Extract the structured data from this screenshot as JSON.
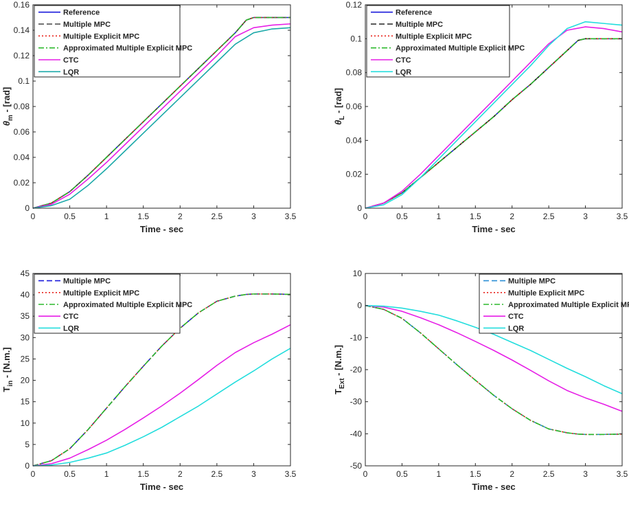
{
  "chart_data": [
    {
      "type": "line",
      "title": "",
      "xlabel": "Time - sec",
      "ylabel_parts": [
        "θ",
        "m",
        " - [rad]"
      ],
      "xlim": [
        0,
        3.5
      ],
      "ylim": [
        0,
        0.16
      ],
      "xticks": [
        0,
        0.5,
        1,
        1.5,
        2,
        2.5,
        3,
        3.5
      ],
      "yticks": [
        0,
        0.02,
        0.04,
        0.06,
        0.08,
        0.1,
        0.12,
        0.14,
        0.16
      ],
      "xtick_labels": [
        "0",
        "0.5",
        "1",
        "1.5",
        "2",
        "2.5",
        "3",
        "3.5"
      ],
      "ytick_labels": [
        "0",
        "0.02",
        "0.04",
        "0.06",
        "0.08",
        "0.1",
        "0.12",
        "0.14",
        "0.16"
      ],
      "legend_position": "top-left",
      "series": [
        {
          "name": "Reference",
          "color": "#1a1adb",
          "dash": "solid",
          "x": [
            0,
            0.25,
            0.5,
            0.75,
            1,
            1.25,
            1.5,
            1.75,
            2,
            2.25,
            2.5,
            2.75,
            2.9,
            3,
            3.25,
            3.5
          ],
          "y": [
            0,
            0.004,
            0.013,
            0.026,
            0.04,
            0.054,
            0.068,
            0.082,
            0.096,
            0.11,
            0.124,
            0.138,
            0.148,
            0.15,
            0.15,
            0.15
          ]
        },
        {
          "name": "Multiple MPC",
          "color": "#444444",
          "dash": "dashed",
          "x": [
            0,
            0.25,
            0.5,
            0.75,
            1,
            1.25,
            1.5,
            1.75,
            2,
            2.25,
            2.5,
            2.75,
            2.9,
            3,
            3.25,
            3.5
          ],
          "y": [
            0,
            0.004,
            0.013,
            0.026,
            0.04,
            0.054,
            0.068,
            0.082,
            0.096,
            0.11,
            0.124,
            0.138,
            0.148,
            0.15,
            0.15,
            0.15
          ]
        },
        {
          "name": "Multiple Explicit MPC",
          "color": "#e8221a",
          "dash": "dotted",
          "x": [
            0,
            0.25,
            0.5,
            0.75,
            1,
            1.25,
            1.5,
            1.75,
            2,
            2.25,
            2.5,
            2.75,
            2.9,
            3,
            3.25,
            3.5
          ],
          "y": [
            0,
            0.004,
            0.013,
            0.026,
            0.04,
            0.054,
            0.068,
            0.082,
            0.096,
            0.11,
            0.124,
            0.138,
            0.148,
            0.15,
            0.15,
            0.15
          ]
        },
        {
          "name": "Approximated Multiple Explicit MPC",
          "color": "#2bb82b",
          "dash": "dashdot",
          "x": [
            0,
            0.25,
            0.5,
            0.75,
            1,
            1.25,
            1.5,
            1.75,
            2,
            2.25,
            2.5,
            2.75,
            2.9,
            3,
            3.25,
            3.5
          ],
          "y": [
            0,
            0.004,
            0.013,
            0.026,
            0.04,
            0.054,
            0.068,
            0.082,
            0.096,
            0.11,
            0.124,
            0.138,
            0.148,
            0.15,
            0.15,
            0.15
          ]
        },
        {
          "name": "CTC",
          "color": "#e61ee6",
          "dash": "solid",
          "x": [
            0,
            0.25,
            0.5,
            0.75,
            1,
            1.25,
            1.5,
            1.75,
            2,
            2.25,
            2.5,
            2.75,
            3,
            3.25,
            3.5
          ],
          "y": [
            0,
            0.003,
            0.011,
            0.023,
            0.036,
            0.05,
            0.064,
            0.078,
            0.092,
            0.106,
            0.12,
            0.135,
            0.142,
            0.144,
            0.145
          ]
        },
        {
          "name": "LQR",
          "color": "#1aa8a8",
          "dash": "solid",
          "x": [
            0,
            0.25,
            0.5,
            0.75,
            1,
            1.25,
            1.5,
            1.75,
            2,
            2.25,
            2.5,
            2.75,
            3,
            3.25,
            3.5
          ],
          "y": [
            0,
            0.002,
            0.007,
            0.018,
            0.031,
            0.045,
            0.059,
            0.073,
            0.087,
            0.101,
            0.115,
            0.129,
            0.138,
            0.141,
            0.142
          ]
        }
      ]
    },
    {
      "type": "line",
      "title": "",
      "xlabel": "Time - sec",
      "ylabel_parts": [
        "θ",
        "L",
        " - [rad]"
      ],
      "xlim": [
        0,
        3.5
      ],
      "ylim": [
        0,
        0.12
      ],
      "xticks": [
        0,
        0.5,
        1,
        1.5,
        2,
        2.5,
        3,
        3.5
      ],
      "yticks": [
        0,
        0.02,
        0.04,
        0.06,
        0.08,
        0.1,
        0.12
      ],
      "xtick_labels": [
        "0",
        "0.5",
        "1",
        "1.5",
        "2",
        "2.5",
        "3",
        "3.5"
      ],
      "ytick_labels": [
        "0",
        "0.02",
        "0.04",
        "0.06",
        "0.08",
        "0.1",
        "0.12"
      ],
      "legend_position": "top-left",
      "series": [
        {
          "name": "Reference",
          "color": "#1a1adb",
          "dash": "solid",
          "x": [
            0,
            0.25,
            0.5,
            0.75,
            1,
            1.25,
            1.5,
            1.75,
            2,
            2.25,
            2.5,
            2.75,
            2.9,
            3,
            3.25,
            3.5
          ],
          "y": [
            0,
            0.003,
            0.009,
            0.018,
            0.027,
            0.036,
            0.045,
            0.054,
            0.064,
            0.073,
            0.083,
            0.093,
            0.099,
            0.1,
            0.1,
            0.1
          ]
        },
        {
          "name": "Multiple MPC",
          "color": "#222222",
          "dash": "dashed",
          "x": [
            0,
            0.25,
            0.5,
            0.75,
            1,
            1.25,
            1.5,
            1.75,
            2,
            2.25,
            2.5,
            2.75,
            2.9,
            3,
            3.25,
            3.5
          ],
          "y": [
            0,
            0.003,
            0.009,
            0.018,
            0.027,
            0.036,
            0.045,
            0.054,
            0.064,
            0.073,
            0.083,
            0.093,
            0.099,
            0.1,
            0.1,
            0.1
          ]
        },
        {
          "name": "Multiple Explicit MPC",
          "color": "#e8221a",
          "dash": "dotted",
          "x": [
            0,
            0.25,
            0.5,
            0.75,
            1,
            1.25,
            1.5,
            1.75,
            2,
            2.25,
            2.5,
            2.75,
            2.9,
            3,
            3.25,
            3.5
          ],
          "y": [
            0,
            0.003,
            0.009,
            0.018,
            0.027,
            0.036,
            0.045,
            0.054,
            0.064,
            0.073,
            0.083,
            0.093,
            0.099,
            0.1,
            0.1,
            0.1
          ]
        },
        {
          "name": "Approximated Multiple Explicit MPC",
          "color": "#2bb82b",
          "dash": "dashdot",
          "x": [
            0,
            0.25,
            0.5,
            0.75,
            1,
            1.25,
            1.5,
            1.75,
            2,
            2.25,
            2.5,
            2.75,
            2.9,
            3,
            3.25,
            3.5
          ],
          "y": [
            0,
            0.003,
            0.009,
            0.018,
            0.027,
            0.036,
            0.045,
            0.054,
            0.064,
            0.073,
            0.083,
            0.093,
            0.099,
            0.1,
            0.1,
            0.1
          ]
        },
        {
          "name": "CTC",
          "color": "#e61ee6",
          "dash": "solid",
          "x": [
            0,
            0.25,
            0.5,
            0.75,
            1,
            1.25,
            1.5,
            1.75,
            2,
            2.25,
            2.5,
            2.75,
            3,
            3.25,
            3.5
          ],
          "y": [
            0,
            0.003,
            0.01,
            0.02,
            0.031,
            0.042,
            0.053,
            0.064,
            0.075,
            0.086,
            0.097,
            0.105,
            0.107,
            0.106,
            0.104
          ]
        },
        {
          "name": "LQR",
          "color": "#22dddd",
          "dash": "solid",
          "x": [
            0,
            0.25,
            0.5,
            0.75,
            1,
            1.25,
            1.5,
            1.75,
            2,
            2.25,
            2.5,
            2.75,
            3,
            3.25,
            3.5
          ],
          "y": [
            0,
            0.002,
            0.008,
            0.018,
            0.029,
            0.04,
            0.051,
            0.062,
            0.073,
            0.084,
            0.096,
            0.106,
            0.11,
            0.109,
            0.108
          ]
        }
      ]
    },
    {
      "type": "line",
      "title": "",
      "xlabel": "Time - sec",
      "ylabel_parts": [
        "T",
        "in",
        " - [N.m.]"
      ],
      "xlim": [
        0,
        3.5
      ],
      "ylim": [
        0,
        45
      ],
      "xticks": [
        0,
        0.5,
        1,
        1.5,
        2,
        2.5,
        3,
        3.5
      ],
      "yticks": [
        0,
        5,
        10,
        15,
        20,
        25,
        30,
        35,
        40,
        45
      ],
      "xtick_labels": [
        "0",
        "0.5",
        "1",
        "1.5",
        "2",
        "2.5",
        "3",
        "3.5"
      ],
      "ytick_labels": [
        "0",
        "5",
        "10",
        "15",
        "20",
        "25",
        "30",
        "35",
        "40",
        "45"
      ],
      "legend_position": "top-left",
      "series": [
        {
          "name": "Multiple MPC",
          "color": "#1a1adb",
          "dash": "dashed",
          "x": [
            0,
            0.25,
            0.5,
            0.75,
            1,
            1.25,
            1.5,
            1.75,
            2,
            2.25,
            2.5,
            2.75,
            2.9,
            3,
            3.25,
            3.5
          ],
          "y": [
            0,
            1.2,
            4,
            8.5,
            13.5,
            18.5,
            23.3,
            28,
            32.2,
            35.8,
            38.5,
            39.7,
            40.1,
            40.2,
            40.2,
            40.1
          ]
        },
        {
          "name": "Multiple Explicit MPC",
          "color": "#e8221a",
          "dash": "dotted",
          "x": [
            0,
            0.25,
            0.5,
            0.75,
            1,
            1.25,
            1.5,
            1.75,
            2,
            2.25,
            2.5,
            2.75,
            2.9,
            3,
            3.25,
            3.5
          ],
          "y": [
            0,
            1.2,
            4,
            8.5,
            13.5,
            18.5,
            23.3,
            28,
            32.2,
            35.8,
            38.5,
            39.7,
            40.1,
            40.2,
            40.2,
            40.1
          ]
        },
        {
          "name": "Approximated Multiple Explicit MPC",
          "color": "#2bb82b",
          "dash": "dashdot",
          "x": [
            0,
            0.25,
            0.5,
            0.75,
            1,
            1.25,
            1.5,
            1.75,
            2,
            2.25,
            2.5,
            2.75,
            2.9,
            3,
            3.25,
            3.5
          ],
          "y": [
            0,
            1.2,
            4,
            8.5,
            13.5,
            18.5,
            23.3,
            28,
            32.2,
            35.8,
            38.5,
            39.7,
            40.1,
            40.2,
            40.2,
            40.1
          ]
        },
        {
          "name": "CTC",
          "color": "#e61ee6",
          "dash": "solid",
          "x": [
            0,
            0.25,
            0.5,
            0.75,
            1,
            1.25,
            1.5,
            1.75,
            2,
            2.25,
            2.5,
            2.75,
            3,
            3.25,
            3.5
          ],
          "y": [
            0,
            0.5,
            1.8,
            3.8,
            6,
            8.5,
            11.2,
            14,
            17,
            20.2,
            23.5,
            26.5,
            28.8,
            30.8,
            33
          ]
        },
        {
          "name": "LQR",
          "color": "#22dddd",
          "dash": "solid",
          "x": [
            0,
            0.25,
            0.5,
            0.75,
            1,
            1.25,
            1.5,
            1.75,
            2,
            2.25,
            2.5,
            2.75,
            3,
            3.25,
            3.5
          ],
          "y": [
            0,
            0.2,
            0.8,
            1.8,
            3,
            4.8,
            6.8,
            9,
            11.5,
            14,
            16.8,
            19.6,
            22.2,
            25,
            27.5
          ]
        }
      ]
    },
    {
      "type": "line",
      "title": "",
      "xlabel": "Time - sec",
      "ylabel_parts": [
        "T",
        "Ext",
        " - [N.m.]"
      ],
      "xlim": [
        0,
        3.5
      ],
      "ylim": [
        -50,
        10
      ],
      "xticks": [
        0,
        0.5,
        1,
        1.5,
        2,
        2.5,
        3,
        3.5
      ],
      "yticks": [
        -50,
        -40,
        -30,
        -20,
        -10,
        0,
        10
      ],
      "xtick_labels": [
        "0",
        "0.5",
        "1",
        "1.5",
        "2",
        "2.5",
        "3",
        "3.5"
      ],
      "ytick_labels": [
        "-50",
        "-40",
        "-30",
        "-20",
        "-10",
        "0",
        "10"
      ],
      "legend_position": "top-right",
      "series": [
        {
          "name": "Multiple MPC",
          "color": "#2a8fd6",
          "dash": "dashed",
          "x": [
            0,
            0.25,
            0.5,
            0.75,
            1,
            1.25,
            1.5,
            1.75,
            2,
            2.25,
            2.5,
            2.75,
            2.9,
            3,
            3.25,
            3.5
          ],
          "y": [
            0,
            -1.2,
            -4,
            -8.5,
            -13.5,
            -18.5,
            -23.3,
            -28,
            -32.2,
            -35.8,
            -38.5,
            -39.7,
            -40.1,
            -40.2,
            -40.2,
            -40.1
          ]
        },
        {
          "name": "Multiple Explicit MPC",
          "color": "#e8221a",
          "dash": "dotted",
          "x": [
            0,
            0.25,
            0.5,
            0.75,
            1,
            1.25,
            1.5,
            1.75,
            2,
            2.25,
            2.5,
            2.75,
            2.9,
            3,
            3.25,
            3.5
          ],
          "y": [
            0,
            -1.2,
            -4,
            -8.5,
            -13.5,
            -18.5,
            -23.3,
            -28,
            -32.2,
            -35.8,
            -38.5,
            -39.7,
            -40.1,
            -40.2,
            -40.2,
            -40.1
          ]
        },
        {
          "name": "Approximated Multiple Explicit MPC",
          "color": "#2bb82b",
          "dash": "dashdot",
          "x": [
            0,
            0.25,
            0.5,
            0.75,
            1,
            1.25,
            1.5,
            1.75,
            2,
            2.25,
            2.5,
            2.75,
            2.9,
            3,
            3.25,
            3.5
          ],
          "y": [
            0,
            -1.2,
            -4,
            -8.5,
            -13.5,
            -18.5,
            -23.3,
            -28,
            -32.2,
            -35.8,
            -38.5,
            -39.7,
            -40.1,
            -40.2,
            -40.2,
            -40.1
          ]
        },
        {
          "name": "CTC",
          "color": "#e61ee6",
          "dash": "solid",
          "x": [
            0,
            0.25,
            0.5,
            0.75,
            1,
            1.25,
            1.5,
            1.75,
            2,
            2.25,
            2.5,
            2.75,
            3,
            3.25,
            3.5
          ],
          "y": [
            0,
            -0.5,
            -1.8,
            -3.8,
            -6,
            -8.5,
            -11.2,
            -14,
            -17,
            -20.2,
            -23.5,
            -26.5,
            -28.8,
            -30.8,
            -33
          ]
        },
        {
          "name": "LQR",
          "color": "#22dddd",
          "dash": "solid",
          "x": [
            0,
            0.25,
            0.5,
            0.75,
            1,
            1.25,
            1.5,
            1.75,
            2,
            2.25,
            2.5,
            2.75,
            3,
            3.25,
            3.5
          ],
          "y": [
            0,
            -0.2,
            -0.8,
            -1.8,
            -3,
            -4.8,
            -6.8,
            -9,
            -11.5,
            -14,
            -16.8,
            -19.6,
            -22.2,
            -25,
            -27.5
          ]
        }
      ]
    }
  ]
}
